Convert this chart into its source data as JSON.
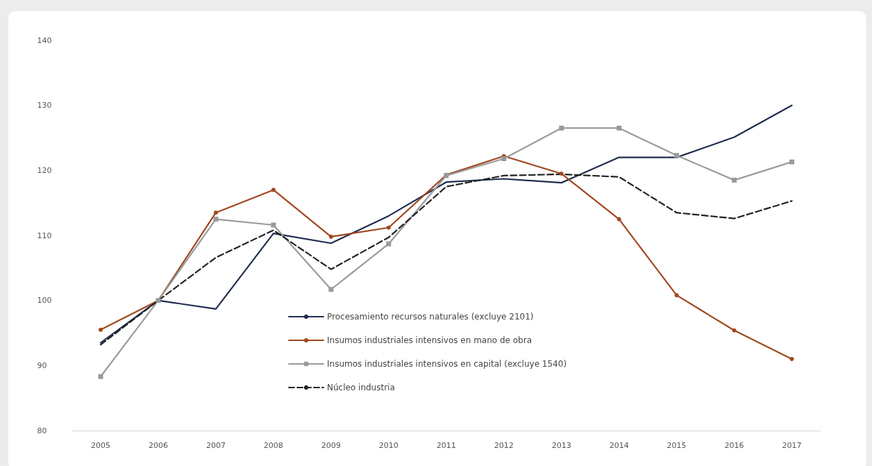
{
  "chart_data": {
    "type": "line",
    "categories": [
      "2005",
      "2006",
      "2007",
      "2008",
      "2009",
      "2010",
      "2011",
      "2012",
      "2013",
      "2014",
      "2015",
      "2016",
      "2017"
    ],
    "series": [
      {
        "name": "Procesamiento recursos naturales (excluye 2101)",
        "color": "#1f2d4e",
        "marker": "none",
        "line_style": "solid",
        "values": [
          93.5,
          100,
          98.7,
          110.3,
          108.8,
          113,
          118.2,
          118.7,
          118.1,
          122,
          122,
          125.1,
          130
        ]
      },
      {
        "name": "Insumos industriales intensivos en mano de obra",
        "color": "#a0461e",
        "marker": "circle",
        "line_style": "solid",
        "values": [
          95.5,
          100,
          113.5,
          117,
          109.8,
          111.2,
          119.3,
          122.2,
          119.5,
          112.5,
          100.8,
          95.4,
          91
        ]
      },
      {
        "name": "Insumos industriales intensivos en capital (excluye 1540)",
        "color": "#9a9a9a",
        "marker": "square",
        "line_style": "solid",
        "values": [
          88.3,
          100,
          112.5,
          111.6,
          101.7,
          108.7,
          119.2,
          121.8,
          126.5,
          126.5,
          122.3,
          118.5,
          121.3
        ]
      },
      {
        "name": "Núcleo industria",
        "color": "#222222",
        "marker": "none",
        "line_style": "dashed",
        "values": [
          93.2,
          100,
          106.6,
          110.8,
          104.8,
          109.7,
          117.5,
          119.2,
          119.4,
          119,
          113.5,
          112.6,
          115.3
        ]
      }
    ],
    "ylim": [
      80,
      140
    ],
    "yticks": [
      80,
      90,
      100,
      110,
      120,
      130,
      140
    ],
    "grid": false,
    "legend": "bottom"
  }
}
